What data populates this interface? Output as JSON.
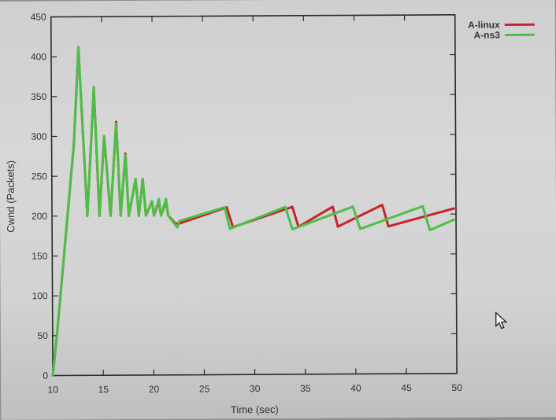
{
  "chart_data": {
    "type": "line",
    "title": "",
    "xlabel": "Time (sec)",
    "ylabel": "Cwnd (Packets)",
    "xlim": [
      10,
      50
    ],
    "ylim": [
      0,
      450
    ],
    "xticks": [
      10,
      15,
      20,
      25,
      30,
      35,
      40,
      45,
      50
    ],
    "yticks": [
      0,
      50,
      100,
      150,
      200,
      250,
      300,
      350,
      400,
      450
    ],
    "legend_position": "top-right",
    "series": [
      {
        "name": "A-linux",
        "color": "#c8232c",
        "x": [
          10,
          10.5,
          12.2,
          12.7,
          13.5,
          14.2,
          14.7,
          15.2,
          15.8,
          16.4,
          16.8,
          17.3,
          17.6,
          18.3,
          18.6,
          19.0,
          19.3,
          19.9,
          20.1,
          20.6,
          20.8,
          21.3,
          21.5,
          22.2,
          22.6,
          27.3,
          27.9,
          33.8,
          34.4,
          37.8,
          38.3,
          42.7,
          43.3,
          49.8
        ],
        "y": [
          0,
          60,
          290,
          410,
          200,
          360,
          200,
          300,
          200,
          318,
          200,
          278,
          200,
          246,
          200,
          246,
          200,
          218,
          200,
          218,
          200,
          218,
          200,
          190,
          190,
          210,
          185,
          210,
          185,
          210,
          185,
          212,
          185,
          207
        ]
      },
      {
        "name": "A-ns3",
        "color": "#4cbf47",
        "x": [
          10,
          10.5,
          12.2,
          12.7,
          13.5,
          14.2,
          14.7,
          15.2,
          15.8,
          16.4,
          16.8,
          17.3,
          17.6,
          18.3,
          18.6,
          19.0,
          19.3,
          19.9,
          20.1,
          20.6,
          20.8,
          21.3,
          21.5,
          22.4,
          22.6,
          27.1,
          27.6,
          33.1,
          33.8,
          39.8,
          40.5,
          46.7,
          47.4,
          49.8
        ],
        "y": [
          0,
          60,
          290,
          412,
          200,
          362,
          200,
          300,
          200,
          316,
          200,
          276,
          200,
          246,
          200,
          246,
          200,
          218,
          200,
          221,
          200,
          221,
          200,
          185,
          193,
          210,
          183,
          210,
          182,
          210,
          182,
          210,
          180,
          193
        ]
      }
    ]
  }
}
